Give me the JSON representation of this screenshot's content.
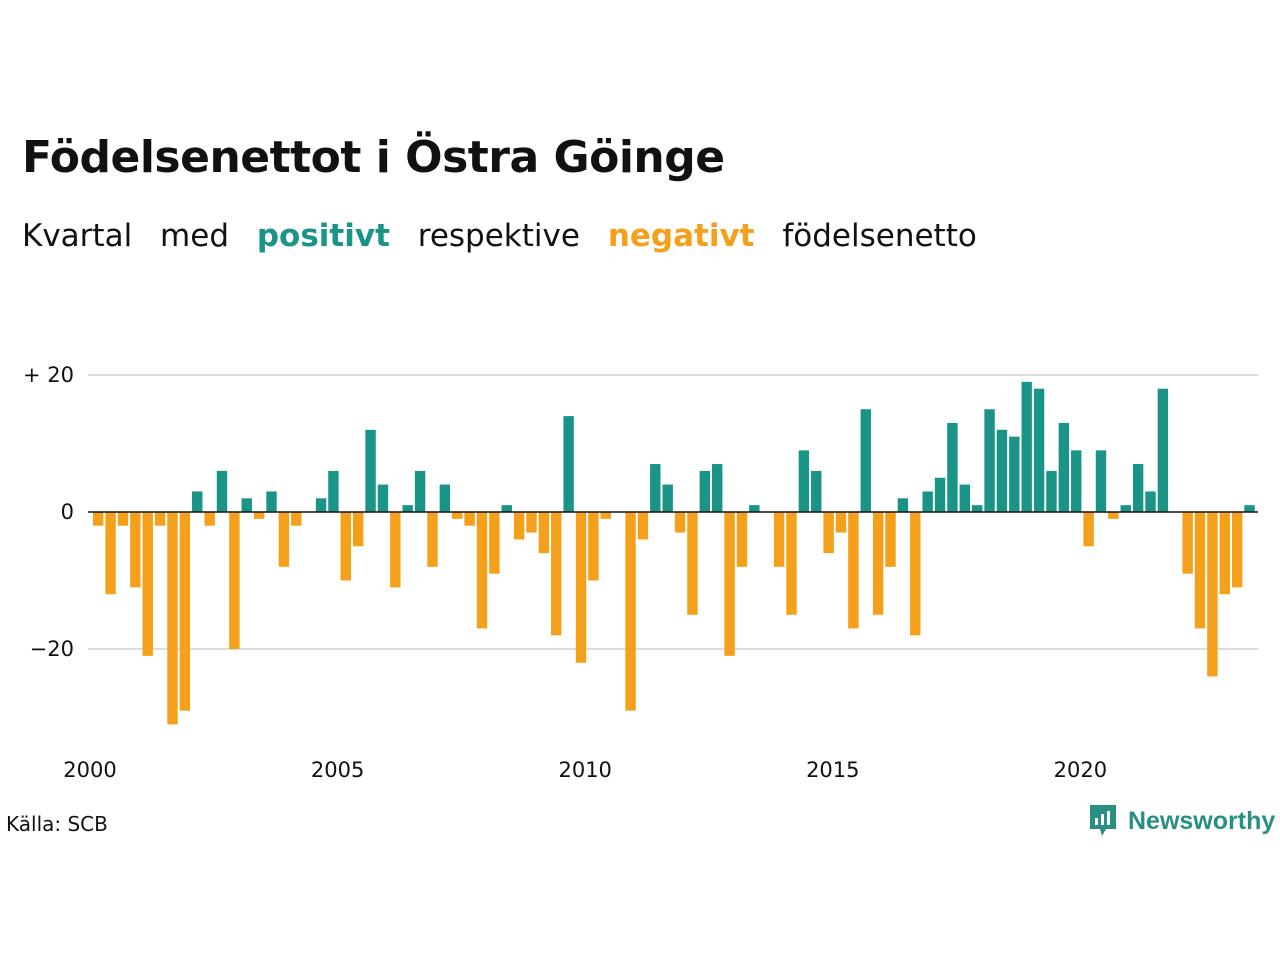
{
  "title": "Födelsenettot i Östra Göinge",
  "subtitle": {
    "part1": "Kvartal",
    "part2": "med",
    "positive_word": "positivt",
    "part3": "respektive",
    "negative_word": "negativt",
    "part4": "födelsenetto"
  },
  "colors": {
    "positive": "#1a9486",
    "negative": "#f5a01a",
    "grid": "#dddddd",
    "logo": "#2a8f83"
  },
  "source": "Källa: SCB",
  "logo": {
    "text": "Newsworthy",
    "icon": "newsworthy-logo-icon"
  },
  "chart_data": {
    "type": "bar",
    "title": "Födelsenettot i Östra Göinge",
    "xlabel": "",
    "ylabel": "",
    "ylim": [
      -34,
      22
    ],
    "y_ticks": [
      {
        "value": 20,
        "label": "+ 20"
      },
      {
        "value": 0,
        "label": "0"
      },
      {
        "value": -20,
        "label": "−20"
      }
    ],
    "x_ticks": [
      {
        "value": 2000,
        "label": "2000"
      },
      {
        "value": 2005,
        "label": "2005"
      },
      {
        "value": 2010,
        "label": "2010"
      },
      {
        "value": 2015,
        "label": "2015"
      },
      {
        "value": 2020,
        "label": "2020"
      }
    ],
    "grid": true,
    "start_year": 2000,
    "values": [
      -2,
      -12,
      -2,
      -11,
      -21,
      -2,
      -31,
      -29,
      3,
      -2,
      6,
      -20,
      2,
      -1,
      3,
      -8,
      -2,
      0,
      2,
      6,
      -10,
      -5,
      12,
      4,
      -11,
      1,
      6,
      -8,
      4,
      -1,
      -2,
      -17,
      -9,
      1,
      -4,
      -3,
      -6,
      -18,
      14,
      -22,
      -10,
      -1,
      0,
      -29,
      -4,
      7,
      4,
      -3,
      -15,
      6,
      7,
      -21,
      -8,
      1,
      0,
      -8,
      -15,
      9,
      6,
      -6,
      -3,
      -17,
      15,
      -15,
      -8,
      2,
      -18,
      3,
      5,
      13,
      4,
      1,
      15,
      12,
      11,
      19,
      18,
      6,
      13,
      9,
      -5,
      9,
      -1,
      1,
      7,
      3,
      18,
      0,
      -9,
      -17,
      -24,
      -12,
      -11,
      1
    ]
  }
}
